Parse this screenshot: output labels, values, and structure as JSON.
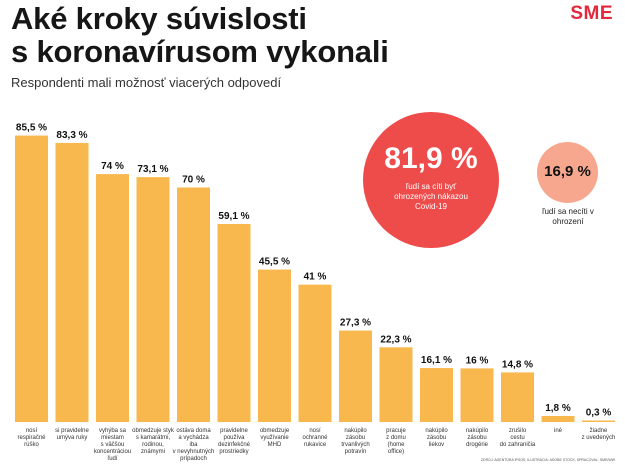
{
  "header": {
    "title_line1": "Aké kroky súvislosti",
    "title_line2": "s koronavírusom vykonali",
    "subtitle": "Respondenti mali možnosť viacerých odpovedí",
    "logo": "SME"
  },
  "highlight_big": {
    "value": "81,9 %",
    "label": "ľudí sa cíti byť ohrozených nákazou Covid-19"
  },
  "highlight_small": {
    "value": "16,9 %",
    "label": "ľudí sa necíti v ohrození"
  },
  "source": "ZDROJ: AGENTÚRA IPSOS, ILUSTRÁCIA: ADOBE STOCK, SPRACOVAL: SME/WW",
  "colors": {
    "bar": "#f9b84e",
    "big_circle": "#ee4b4b",
    "small_circle": "#f7a78e",
    "logo": "#e4283b"
  },
  "chart_data": {
    "type": "bar",
    "value_unit": "%",
    "ylim": [
      0,
      100
    ],
    "grid": false,
    "categories": [
      [
        "nosí",
        "respiračné",
        "rúško"
      ],
      [
        "si pravidelne",
        "umýva ruky"
      ],
      [
        "vyhýba sa",
        "miestam",
        "s väčšou",
        "koncentráciou",
        "ľudí"
      ],
      [
        "obmedzuje styk",
        "s kamarátmi,",
        "rodinou,",
        "známymi"
      ],
      [
        "ostáva doma",
        "a vychádza",
        "iba",
        "v nevyhnutných",
        "prípadoch"
      ],
      [
        "pravidelne",
        "používa",
        "dezinfekčné",
        "prostriedky"
      ],
      [
        "obmedzuje",
        "využívanie",
        "MHD"
      ],
      [
        "nosí",
        "ochranné",
        "rukavice"
      ],
      [
        "nakúpilo",
        "zásobu",
        "trvanlivých",
        "potravín"
      ],
      [
        "pracuje",
        "z domu",
        "(home",
        "office)"
      ],
      [
        "nakúpilo",
        "zásobu",
        "liekov"
      ],
      [
        "nakúpilo",
        "zásobu",
        "drogérie"
      ],
      [
        "zrušilo",
        "cestu",
        "do zahraničia"
      ],
      [
        "iné"
      ],
      [
        "žiadne",
        "z uvedených"
      ]
    ],
    "values": [
      85.5,
      83.3,
      74,
      73.1,
      70,
      59.1,
      45.5,
      41,
      27.3,
      22.3,
      16.1,
      16,
      14.8,
      1.8,
      0.3
    ],
    "value_labels": [
      "85,5 %",
      "83,3 %",
      "74 %",
      "73,1 %",
      "70 %",
      "59,1 %",
      "45,5 %",
      "41 %",
      "27,3 %",
      "22,3 %",
      "16,1 %",
      "16 %",
      "14,8 %",
      "1,8 %",
      "0,3 %"
    ]
  }
}
